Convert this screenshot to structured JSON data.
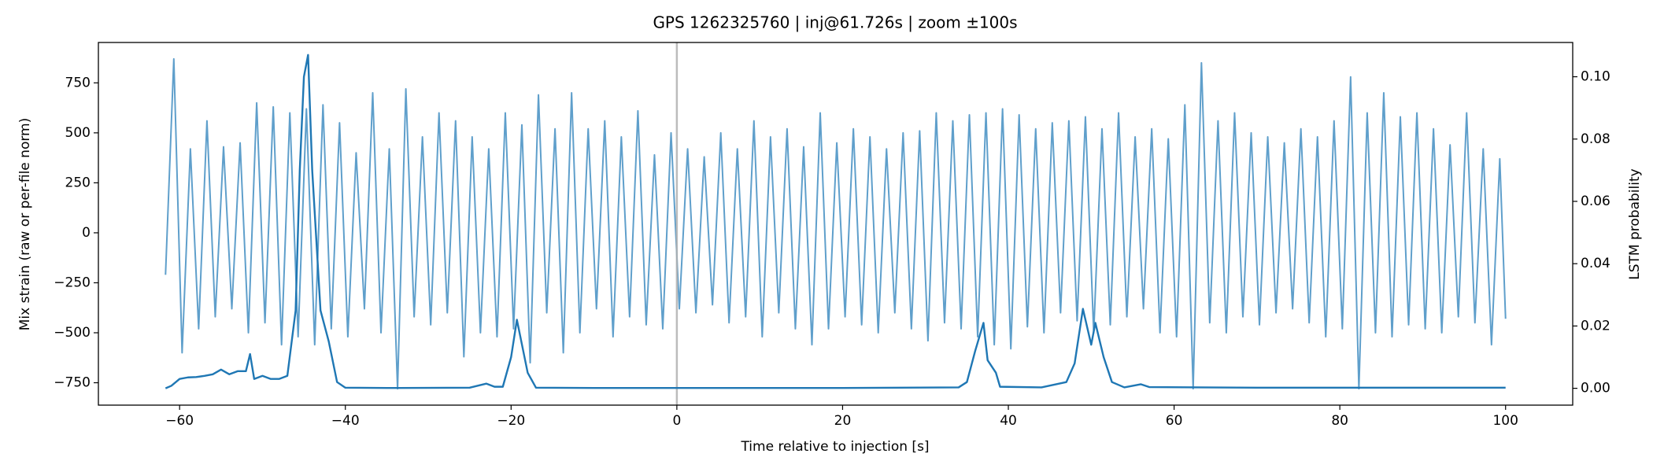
{
  "chart_data": {
    "type": "line",
    "title": "GPS 1262325760 | inj@61.726s | zoom ±100s",
    "x_label": "Time relative to injection [s]",
    "y_label": "Mix strain (raw or per-file norm)",
    "y2_label": "LSTM probability",
    "xlim": [
      -69.8,
      108.1
    ],
    "ylim": [
      -862,
      952
    ],
    "y2lim": [
      -0.0054,
      0.111
    ],
    "xticks": [
      {
        "value": -60,
        "label": "−60"
      },
      {
        "value": -40,
        "label": "−40"
      },
      {
        "value": -20,
        "label": "−20"
      },
      0,
      20,
      40,
      60,
      80,
      100
    ],
    "yticks": [
      {
        "value": -750,
        "label": "−750"
      },
      {
        "value": -500,
        "label": "−500"
      },
      {
        "value": -250,
        "label": "−250"
      },
      0,
      250,
      500,
      750
    ],
    "y2ticks": [
      {
        "value": 0,
        "label": "0.00"
      },
      {
        "value": 0.02,
        "label": "0.02"
      },
      {
        "value": 0.04,
        "label": "0.04"
      },
      {
        "value": 0.06,
        "label": "0.06"
      },
      {
        "value": 0.08,
        "label": "0.08"
      },
      {
        "value": 0.1,
        "label": "0.10"
      }
    ],
    "vline_x": 0,
    "vline_color": "#b0b0b0",
    "series": [
      {
        "color": "#5f9fcb",
        "axis": "y",
        "x": [
          -61.7,
          -60.7,
          -59.7,
          -58.7,
          -57.7,
          -56.7,
          -55.7,
          -54.7,
          -53.7,
          -52.7,
          -51.7,
          -50.7,
          -49.7,
          -48.7,
          -47.7,
          -46.7,
          -45.7,
          -44.7,
          -43.7,
          -42.7,
          -41.7,
          -40.7,
          -39.7,
          -38.7,
          -37.7,
          -36.7,
          -35.7,
          -34.7,
          -33.7,
          -32.7,
          -31.7,
          -30.7,
          -29.7,
          -28.7,
          -27.7,
          -26.7,
          -25.7,
          -24.7,
          -23.7,
          -22.7,
          -21.7,
          -20.7,
          -19.7,
          -18.7,
          -17.7,
          -16.7,
          -15.7,
          -14.7,
          -13.7,
          -12.7,
          -11.7,
          -10.7,
          -9.7,
          -8.7,
          -7.7,
          -6.7,
          -5.7,
          -4.7,
          -3.7,
          -2.7,
          -1.7,
          -0.7,
          0.3,
          1.3,
          2.3,
          3.3,
          4.3,
          5.3,
          6.3,
          7.3,
          8.3,
          9.3,
          10.3,
          11.3,
          12.3,
          13.3,
          14.3,
          15.3,
          16.3,
          17.3,
          18.3,
          19.3,
          20.3,
          21.3,
          22.3,
          23.3,
          24.3,
          25.3,
          26.3,
          27.3,
          28.3,
          29.3,
          30.3,
          31.3,
          32.3,
          33.3,
          34.3,
          35.3,
          36.3,
          37.3,
          38.3,
          39.3,
          40.3,
          41.3,
          42.3,
          43.3,
          44.3,
          45.3,
          46.3,
          47.3,
          48.3,
          49.3,
          50.3,
          51.3,
          52.3,
          53.3,
          54.3,
          55.3,
          56.3,
          57.3,
          58.3,
          59.3,
          60.3,
          61.3,
          62.3,
          63.3,
          64.3,
          65.3,
          66.3,
          67.3,
          68.3,
          69.3,
          70.3,
          71.3,
          72.3,
          73.3,
          74.3,
          75.3,
          76.3,
          77.3,
          78.3,
          79.3,
          80.3,
          81.3,
          82.3,
          83.3,
          84.3,
          85.3,
          86.3,
          87.3,
          88.3,
          89.3,
          90.3,
          91.3,
          92.3,
          93.3,
          94.3,
          95.3,
          96.3,
          97.3,
          98.3,
          99.3,
          100
        ],
        "values": [
          -210,
          870,
          -600,
          420,
          -480,
          560,
          -420,
          430,
          -380,
          450,
          -500,
          650,
          -450,
          630,
          -560,
          600,
          -520,
          620,
          -560,
          640,
          -480,
          550,
          -520,
          400,
          -380,
          700,
          -500,
          420,
          -780,
          720,
          -420,
          480,
          -460,
          600,
          -400,
          560,
          -620,
          480,
          -500,
          420,
          -520,
          600,
          -480,
          540,
          -650,
          690,
          -400,
          520,
          -600,
          700,
          -500,
          520,
          -380,
          560,
          -520,
          480,
          -420,
          610,
          -460,
          390,
          -480,
          500,
          -380,
          420,
          -400,
          380,
          -360,
          500,
          -450,
          420,
          -420,
          560,
          -520,
          480,
          -400,
          520,
          -480,
          430,
          -560,
          600,
          -480,
          450,
          -420,
          520,
          -460,
          480,
          -500,
          420,
          -400,
          500,
          -480,
          510,
          -540,
          600,
          -450,
          560,
          -480,
          590,
          -520,
          600,
          -560,
          620,
          -580,
          590,
          -470,
          520,
          -500,
          550,
          -400,
          560,
          -440,
          580,
          -500,
          520,
          -460,
          600,
          -420,
          480,
          -380,
          520,
          -500,
          470,
          -520,
          640,
          -780,
          850,
          -450,
          560,
          -500,
          600,
          -420,
          500,
          -460,
          480,
          -400,
          450,
          -380,
          520,
          -450,
          480,
          -520,
          560,
          -480,
          780,
          -780,
          600,
          -500,
          700,
          -520,
          580,
          -460,
          600,
          -480,
          520,
          -500,
          440,
          -420,
          600,
          -450,
          420,
          -560,
          370,
          -430
        ]
      },
      {
        "color": "#1f77b4",
        "axis": "y2",
        "x": [
          -61.7,
          -61,
          -60,
          -59,
          -58,
          -57,
          -56,
          -55,
          -54,
          -53,
          -52,
          -51.5,
          -51,
          -50,
          -49,
          -48,
          -47,
          -46,
          -45.5,
          -45,
          -44.5,
          -44,
          -43,
          -42,
          -41,
          -40,
          -35,
          -25,
          -23,
          -22,
          -21,
          -20,
          -19.3,
          -18,
          -17,
          -10,
          0,
          20,
          34,
          35,
          36,
          37,
          37.5,
          38.5,
          39,
          44,
          47,
          48,
          49,
          50,
          50.5,
          51.5,
          52.5,
          54,
          56,
          57,
          70,
          100
        ],
        "values": [
          0,
          0.0008,
          0.003,
          0.0035,
          0.0036,
          0.004,
          0.0045,
          0.006,
          0.0045,
          0.0055,
          0.0055,
          0.011,
          0.003,
          0.004,
          0.003,
          0.003,
          0.004,
          0.025,
          0.07,
          0.1,
          0.107,
          0.07,
          0.025,
          0.015,
          0.002,
          0.0002,
          0.0001,
          0.0002,
          0.0015,
          0.0005,
          0.0005,
          0.01,
          0.022,
          0.005,
          0.0002,
          0.0001,
          0.0001,
          0.0001,
          0.0003,
          0.002,
          0.012,
          0.021,
          0.009,
          0.005,
          0.0005,
          0.0003,
          0.002,
          0.008,
          0.0255,
          0.014,
          0.021,
          0.01,
          0.002,
          0.0003,
          0.0013,
          0.0004,
          0.0002,
          0.0002
        ]
      }
    ]
  }
}
